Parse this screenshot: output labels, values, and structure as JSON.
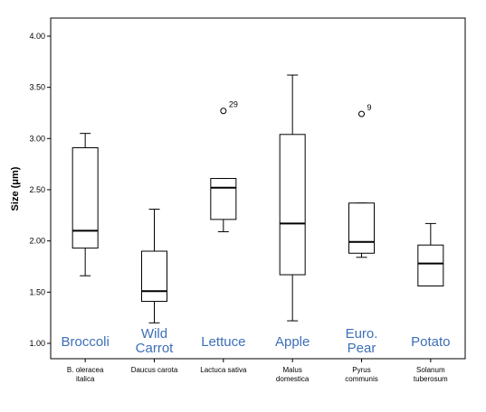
{
  "chart_data": {
    "type": "box",
    "title": "",
    "xlabel": "",
    "ylabel": "Size (μm)",
    "ylim": [
      0.9,
      4.15
    ],
    "yticks": [
      "1.00",
      "1.50",
      "2.00",
      "2.50",
      "3.00",
      "3.50",
      "4.00"
    ],
    "grid": false,
    "accent_color": "#3d6fb6",
    "categories": [
      {
        "species": [
          "B. oleracea",
          "italica"
        ],
        "common": [
          "Broccoli"
        ],
        "whisker_low": 1.66,
        "q1": 1.93,
        "median": 2.1,
        "q3": 2.91,
        "whisker_high": 3.05,
        "outliers": []
      },
      {
        "species": [
          "Daucus carota"
        ],
        "common": [
          "Wild",
          "Carrot"
        ],
        "whisker_low": 1.2,
        "q1": 1.41,
        "median": 1.51,
        "q3": 1.9,
        "whisker_high": 2.31,
        "outliers": []
      },
      {
        "species": [
          "Lactuca sativa"
        ],
        "common": [
          "Lettuce"
        ],
        "whisker_low": 2.09,
        "q1": 2.21,
        "median": 2.52,
        "q3": 2.61,
        "whisker_high": 2.61,
        "outliers": [
          {
            "value": 3.27,
            "label": "29"
          }
        ]
      },
      {
        "species": [
          "Malus",
          "domestica"
        ],
        "common": [
          "Apple"
        ],
        "whisker_low": 1.22,
        "q1": 1.67,
        "median": 2.17,
        "q3": 3.04,
        "whisker_high": 3.62,
        "outliers": []
      },
      {
        "species": [
          "Pyrus",
          "communis"
        ],
        "common": [
          "Euro.",
          "Pear"
        ],
        "whisker_low": 1.84,
        "q1": 1.88,
        "median": 1.99,
        "q3": 2.37,
        "whisker_high": 2.37,
        "outliers": [
          {
            "value": 3.24,
            "label": "9"
          }
        ]
      },
      {
        "species": [
          "Solanum",
          "tuberosum"
        ],
        "common": [
          "Potato"
        ],
        "whisker_low": 1.56,
        "q1": 1.56,
        "median": 1.78,
        "q3": 1.96,
        "whisker_high": 2.17,
        "outliers": []
      }
    ]
  }
}
